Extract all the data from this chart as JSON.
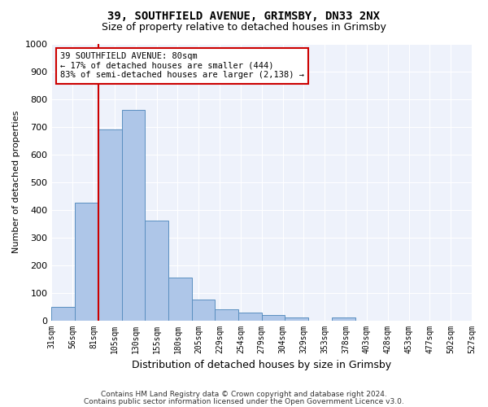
{
  "title1": "39, SOUTHFIELD AVENUE, GRIMSBY, DN33 2NX",
  "title2": "Size of property relative to detached houses in Grimsby",
  "xlabel": "Distribution of detached houses by size in Grimsby",
  "ylabel": "Number of detached properties",
  "footnote1": "Contains HM Land Registry data © Crown copyright and database right 2024.",
  "footnote2": "Contains public sector information licensed under the Open Government Licence v3.0.",
  "bar_values": [
    50,
    425,
    690,
    760,
    360,
    155,
    75,
    40,
    27,
    18,
    10,
    0,
    10,
    0,
    0,
    0,
    0,
    0
  ],
  "bin_labels": [
    "31sqm",
    "56sqm",
    "81sqm",
    "105sqm",
    "130sqm",
    "155sqm",
    "180sqm",
    "205sqm",
    "229sqm",
    "254sqm",
    "279sqm",
    "304sqm",
    "329sqm",
    "353sqm",
    "378sqm",
    "403sqm",
    "428sqm",
    "453sqm",
    "477sqm",
    "502sqm",
    "527sqm"
  ],
  "bar_color": "#aec6e8",
  "bar_edge_color": "#5a8fc0",
  "vline_color": "#cc0000",
  "annotation_text": "39 SOUTHFIELD AVENUE: 80sqm\n← 17% of detached houses are smaller (444)\n83% of semi-detached houses are larger (2,138) →",
  "annotation_box_color": "#cc0000",
  "ylim": [
    0,
    1000
  ],
  "yticks": [
    0,
    100,
    200,
    300,
    400,
    500,
    600,
    700,
    800,
    900,
    1000
  ],
  "figsize": [
    6.0,
    5.0
  ],
  "dpi": 100
}
